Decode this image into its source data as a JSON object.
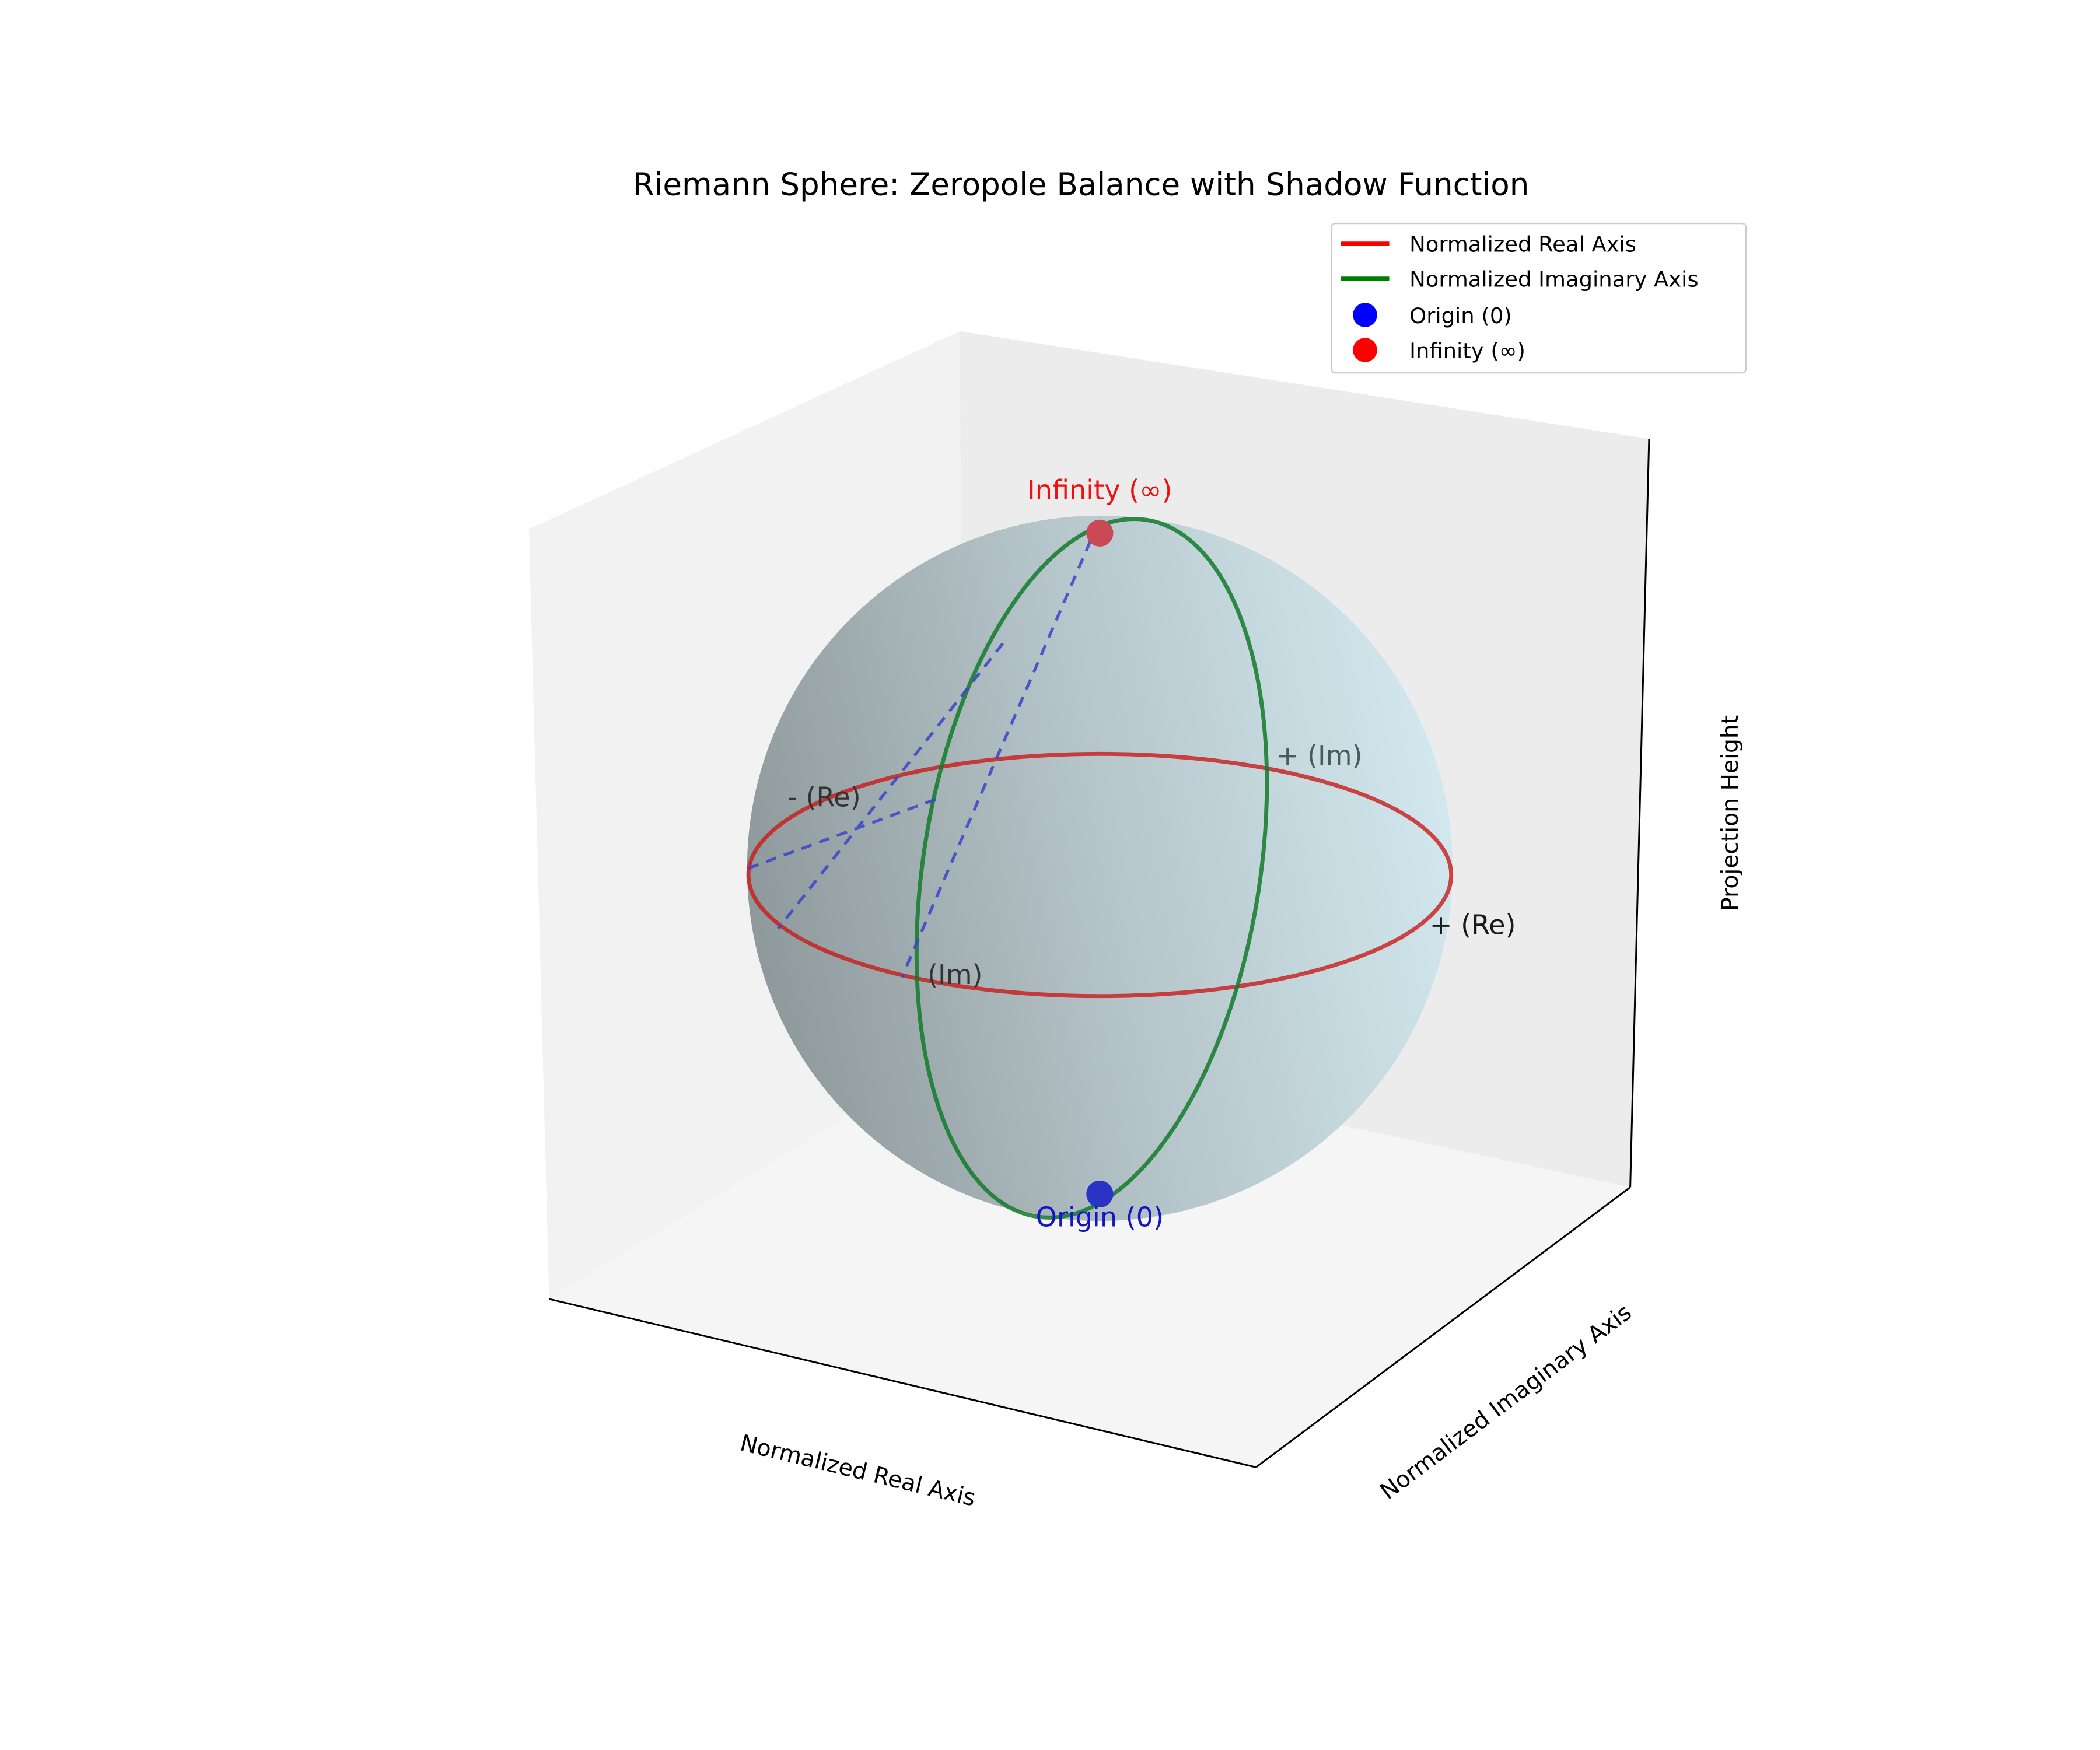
{
  "chart_data": {
    "type": "scatter",
    "projection": "3d",
    "title": "Riemann Sphere: Zeropole Balance with Shadow Function",
    "xlabel": "Normalized Real Axis",
    "ylabel": "Normalized Imaginary Axis",
    "zlabel": "Projection Height",
    "grid": false,
    "legend_position": "top-right",
    "sphere": {
      "color": "#add8e6",
      "center": [
        0,
        0,
        0.5
      ],
      "radius": 0.5
    },
    "series": [
      {
        "name": "Normalized Real Axis",
        "kind": "circle",
        "color": "#ff0000",
        "plane": "xz-equator",
        "points_xyz": [
          [
            0.5,
            0,
            0.5
          ],
          [
            0.3536,
            0.3536,
            0.5
          ],
          [
            0,
            0.5,
            0.5
          ],
          [
            -0.3536,
            0.3536,
            0.5
          ],
          [
            -0.5,
            0,
            0.5
          ],
          [
            -0.3536,
            -0.3536,
            0.5
          ],
          [
            0,
            -0.5,
            0.5
          ],
          [
            0.3536,
            -0.3536,
            0.5
          ]
        ]
      },
      {
        "name": "Normalized Imaginary Axis",
        "kind": "circle",
        "color": "#008000",
        "plane": "yz-meridian",
        "points_xyz": [
          [
            0,
            0.5,
            0.5
          ],
          [
            0,
            0.3536,
            0.8536
          ],
          [
            0,
            0,
            1
          ],
          [
            0,
            -0.3536,
            0.8536
          ],
          [
            0,
            -0.5,
            0.5
          ],
          [
            0,
            -0.3536,
            0.1464
          ],
          [
            0,
            0,
            0
          ],
          [
            0,
            0.3536,
            0.1464
          ]
        ]
      },
      {
        "name": "Origin (0)",
        "kind": "point",
        "color": "#0000ff",
        "points_xyz": [
          [
            0,
            0,
            0
          ]
        ]
      },
      {
        "name": "Infinity (∞)",
        "kind": "point",
        "color": "#ff0000",
        "points_xyz": [
          [
            0,
            0,
            1
          ]
        ]
      }
    ],
    "shadow_lines": {
      "color": "#0000cd",
      "style": "dashed",
      "segments_xyz": [
        [
          [
            0,
            0,
            1
          ],
          [
            -0.5,
            0,
            0.5
          ]
        ],
        [
          [
            0,
            0,
            1
          ],
          [
            0,
            -0.5,
            0.5
          ]
        ]
      ]
    },
    "annotations": [
      {
        "text": "Infinity (∞)",
        "color": "#ff0000"
      },
      {
        "text": "Origin (0)",
        "color": "#0000ff"
      },
      {
        "text": "+ (Re)",
        "color": "#000000"
      },
      {
        "text": "- (Re)",
        "color": "#000000"
      },
      {
        "text": "+ (Im)",
        "color": "#000000"
      },
      {
        "text": "(Im)",
        "color": "#000000"
      }
    ],
    "legend": [
      {
        "label": "Normalized Real Axis",
        "marker": "line",
        "color": "#ff0000"
      },
      {
        "label": "Normalized Imaginary Axis",
        "marker": "line",
        "color": "#008000"
      },
      {
        "label": "Origin (0)",
        "marker": "dot",
        "color": "#0000ff"
      },
      {
        "label": "Infinity (∞)",
        "marker": "dot",
        "color": "#ff0000"
      }
    ]
  }
}
